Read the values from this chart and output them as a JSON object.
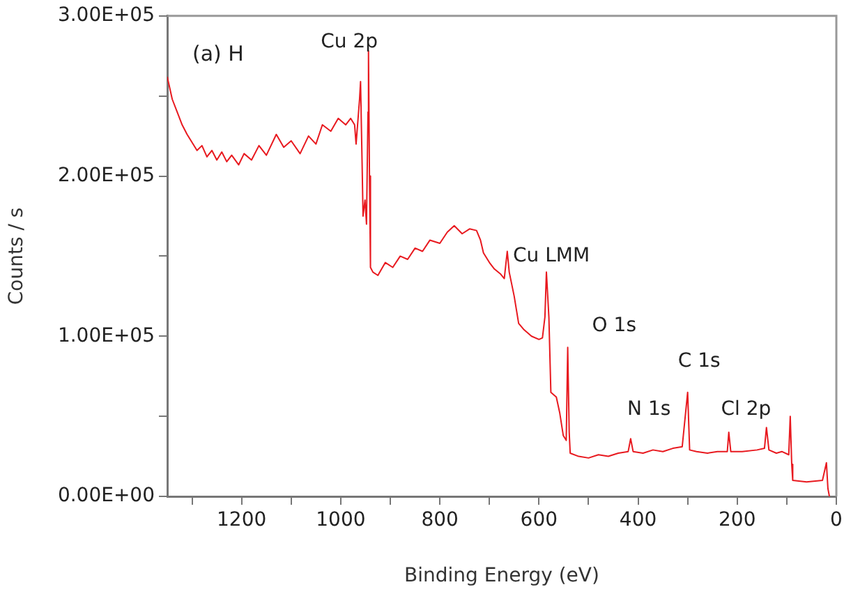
{
  "chart_data": {
    "type": "line",
    "title": "(a) H",
    "xlabel": "Binding Energy (eV)",
    "ylabel": "Counts / s",
    "xlim": [
      1350,
      0
    ],
    "xticks": [
      1200,
      {
        "value": 1300,
        "label": null
      },
      {
        "value": 1100,
        "label": null
      },
      1000,
      {
        "value": 900,
        "label": null
      },
      800,
      {
        "value": 700,
        "label": null
      },
      600,
      {
        "value": 500,
        "label": null
      },
      400,
      {
        "value": 300,
        "label": null
      },
      200,
      {
        "value": 100,
        "label": null
      },
      0
    ],
    "ylim": [
      0,
      300000
    ],
    "yticks": [
      {
        "value": 0,
        "label": "0.00E+00"
      },
      {
        "value": 50000,
        "label": null
      },
      {
        "value": 100000,
        "label": "1.00E+05"
      },
      {
        "value": 150000,
        "label": null
      },
      {
        "value": 200000,
        "label": "2.00E+05"
      },
      {
        "value": 250000,
        "label": null
      },
      {
        "value": 300000,
        "label": "3.00E+05"
      }
    ],
    "legend": false,
    "marker": "none",
    "line_style": "solid",
    "annotations": [
      "Cu 2p",
      "Cu LMM",
      "O 1s",
      "N 1s",
      "C 1s",
      "Cl 2p"
    ],
    "series": [
      {
        "color": "#e8191f",
        "x": [
          1350,
          1340,
          1330,
          1320,
          1310,
          1300,
          1290,
          1280,
          1270,
          1260,
          1250,
          1240,
          1230,
          1220,
          1206,
          1195,
          1180,
          1165,
          1150,
          1130,
          1115,
          1100,
          1082,
          1065,
          1050,
          1037,
          1020,
          1005,
          990,
          980,
          972,
          969,
          962,
          960,
          957,
          955,
          951,
          948,
          945,
          944,
          942,
          940,
          935,
          925,
          910,
          895,
          880,
          865,
          850,
          835,
          820,
          800,
          785,
          771,
          755,
          740,
          726,
          718,
          712,
          700,
          690,
          678,
          670,
          664,
          660,
          650,
          641,
          630,
          615,
          600,
          593,
          588,
          585,
          580,
          576,
          565,
          558,
          551,
          545,
          542,
          539,
          537,
          520,
          500,
          480,
          460,
          440,
          420,
          415,
          410,
          390,
          370,
          350,
          330,
          311,
          300,
          296,
          282,
          260,
          240,
          220,
          217,
          213,
          190,
          160,
          145,
          141,
          136,
          121,
          110,
          96,
          93,
          90,
          88,
          60,
          28,
          20,
          17,
          14
        ],
        "values": [
          262000,
          248000,
          240000,
          232000,
          226000,
          221000,
          216000,
          219000,
          212000,
          216000,
          210000,
          215000,
          209000,
          213000,
          207000,
          214000,
          210000,
          219000,
          213000,
          226000,
          218000,
          222000,
          214000,
          225000,
          220000,
          232000,
          228000,
          236000,
          232000,
          236000,
          232000,
          220000,
          248000,
          259000,
          210000,
          175000,
          185000,
          170000,
          240000,
          278000,
          200000,
          143000,
          140000,
          138000,
          146000,
          143000,
          150000,
          148000,
          155000,
          153000,
          160000,
          158000,
          165000,
          169000,
          164000,
          167000,
          166000,
          160000,
          152000,
          146000,
          142000,
          139000,
          136000,
          153000,
          140000,
          125000,
          108000,
          104000,
          100000,
          98000,
          99000,
          112000,
          140000,
          112000,
          65000,
          62000,
          52000,
          38000,
          35000,
          93000,
          40000,
          27000,
          25000,
          24000,
          26000,
          25000,
          27000,
          28000,
          36000,
          28000,
          27000,
          29000,
          28000,
          30000,
          31000,
          65000,
          29000,
          28000,
          27000,
          28000,
          28000,
          40000,
          28000,
          28000,
          29000,
          30000,
          43000,
          29000,
          27000,
          28000,
          26000,
          50000,
          20000,
          10000,
          9000,
          10000,
          21000,
          5000,
          0
        ]
      }
    ]
  }
}
